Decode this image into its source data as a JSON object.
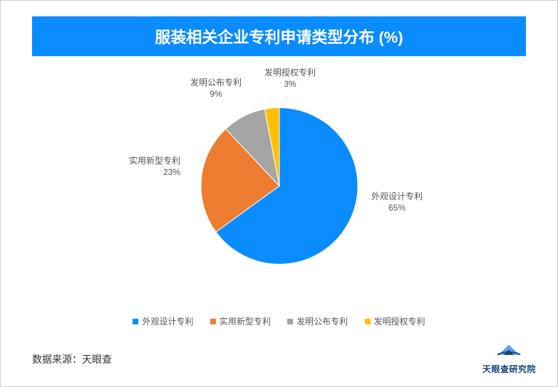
{
  "title": {
    "text": "服装相关企业专利申请类型分布 (%)",
    "background_color": "#0a8cff",
    "text_color": "#ffffff",
    "font_size": 22
  },
  "pie_chart": {
    "type": "pie",
    "radius": 110,
    "background_color": "#ffffff",
    "start_angle_deg": -90,
    "label_fontsize": 12,
    "label_color": "#555555",
    "slices": [
      {
        "name": "外观设计专利",
        "value": 65,
        "color": "#0a8cff",
        "label": "外观设计专利",
        "pct": "65%"
      },
      {
        "name": "实用新型专利",
        "value": 23,
        "color": "#ed7d31",
        "label": "实用新型专利",
        "pct": "23%"
      },
      {
        "name": "发明公布专利",
        "value": 9,
        "color": "#a5a5a5",
        "label": "发明公布专利",
        "pct": "9%"
      },
      {
        "name": "发明授权专利",
        "value": 3,
        "color": "#ffc000",
        "label": "发明授权专利",
        "pct": "3%"
      }
    ]
  },
  "legend": {
    "items": [
      {
        "label": "外观设计专利",
        "color": "#0a8cff"
      },
      {
        "label": "实用新型专利",
        "color": "#ed7d31"
      },
      {
        "label": "发明公布专利",
        "color": "#a5a5a5"
      },
      {
        "label": "发明授权专利",
        "color": "#ffc000"
      }
    ]
  },
  "source": {
    "text": "数据来源：天眼查"
  },
  "brand": {
    "text": "天眼查研究院",
    "color": "#13427a",
    "logo_fill": "#13427a",
    "logo_accent": "#5aa0e6"
  }
}
